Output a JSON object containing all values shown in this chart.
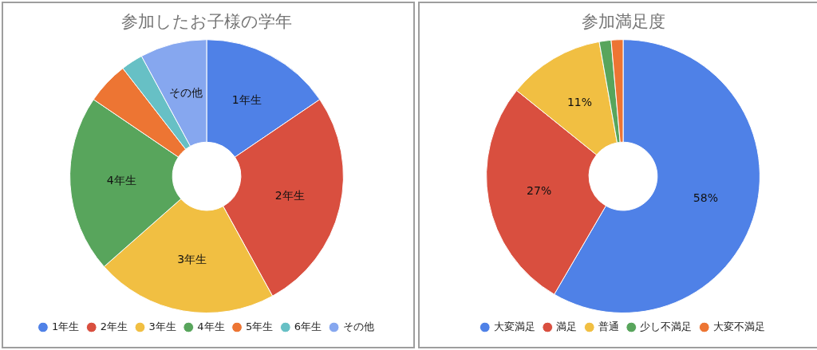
{
  "chart_data": [
    {
      "type": "donut",
      "title": "参加したお子様の学年",
      "categories": [
        "1年生",
        "2年生",
        "3年生",
        "4年生",
        "5年生",
        "6年生",
        "その他"
      ],
      "values": [
        15.5,
        26.5,
        21.5,
        21,
        5,
        2.6,
        7.9
      ],
      "colors": [
        "#4f81e7",
        "#d94f3f",
        "#f1bf42",
        "#58a55c",
        "#ed7533",
        "#67c0c5",
        "#86a7ef"
      ],
      "annotations": [
        {
          "text": "1年生",
          "x": "1年生"
        },
        {
          "text": "2年生",
          "x": "2年生"
        },
        {
          "text": "3年生",
          "x": "3年生"
        },
        {
          "text": "4年生",
          "x": "4年生"
        },
        {
          "text": "その他",
          "x": "その他"
        }
      ],
      "legend": "bottom"
    },
    {
      "type": "donut",
      "title": "参加満足度",
      "categories": [
        "大変満足",
        "満足",
        "普通",
        "少し不満足",
        "大変不満足"
      ],
      "values": [
        58.4,
        27.4,
        11.4,
        1.4,
        1.4
      ],
      "colors": [
        "#4f81e7",
        "#d94f3f",
        "#f1bf42",
        "#58a55c",
        "#ed7533"
      ],
      "value_labels": [
        "58%",
        "27%",
        "11%",
        null,
        null
      ],
      "legend": "bottom"
    }
  ]
}
